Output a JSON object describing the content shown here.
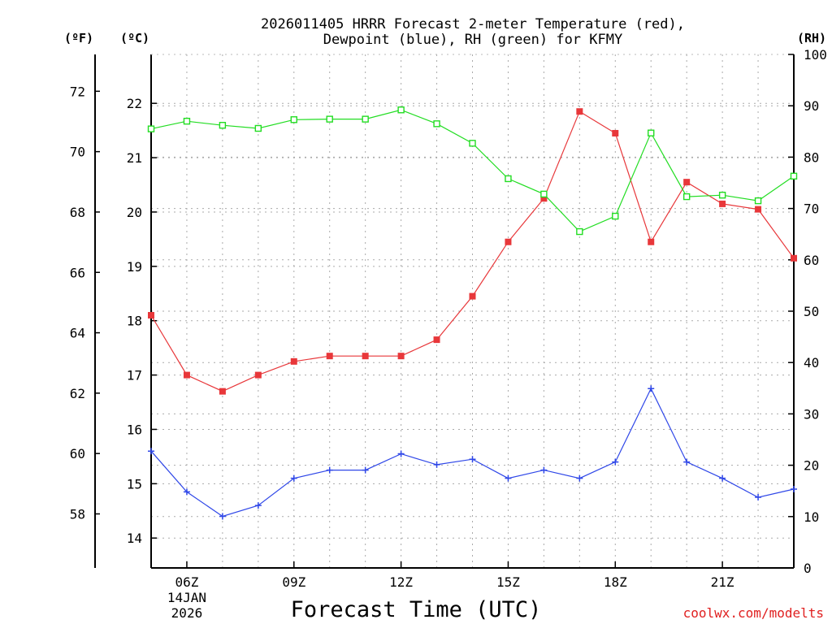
{
  "chart_data": {
    "type": "line",
    "title_lines": [
      "2026011405 HRRR Forecast 2-meter Temperature (red),",
      "Dewpoint (blue), RH (green) for KFMY"
    ],
    "xlabel": "Forecast Time (UTC)",
    "credit": "coolwx.com/modelts",
    "unit_labels": {
      "fahrenheit": "(ºF)",
      "celsius": "(ºC)",
      "rh": "(RH)"
    },
    "x_hours": [
      5,
      6,
      7,
      8,
      9,
      10,
      11,
      12,
      13,
      14,
      15,
      16,
      17,
      18,
      19,
      20,
      21,
      22,
      23
    ],
    "x_range": [
      5,
      23
    ],
    "x_ticks": [
      {
        "hour": 6,
        "label": "06Z",
        "sub": [
          "14JAN",
          "2026"
        ]
      },
      {
        "hour": 9,
        "label": "09Z"
      },
      {
        "hour": 12,
        "label": "12Z"
      },
      {
        "hour": 15,
        "label": "15Z"
      },
      {
        "hour": 18,
        "label": "18Z"
      },
      {
        "hour": 21,
        "label": "21Z"
      }
    ],
    "celsius_range": [
      13.45,
      22.9
    ],
    "celsius_ticks": [
      "14",
      "15",
      "16",
      "17",
      "18",
      "19",
      "20",
      "21",
      "22"
    ],
    "fahrenheit_ticks": [
      "58",
      "60",
      "62",
      "64",
      "66",
      "68",
      "70",
      "72"
    ],
    "rh_range": [
      0,
      100
    ],
    "rh_ticks": [
      "0",
      "10",
      "20",
      "30",
      "40",
      "50",
      "60",
      "70",
      "80",
      "90",
      "100"
    ],
    "series": [
      {
        "name": "Temperature",
        "axis": "celsius",
        "color": "#e8373a",
        "marker": "filled-square",
        "values": [
          18.1,
          17.0,
          16.7,
          17.0,
          17.25,
          17.35,
          17.35,
          17.35,
          17.65,
          18.45,
          19.45,
          20.25,
          21.85,
          21.45,
          19.45,
          20.55,
          20.15,
          20.05,
          19.15
        ]
      },
      {
        "name": "Dewpoint",
        "axis": "celsius",
        "color": "#2f47e8",
        "marker": "plus",
        "values": [
          15.6,
          14.85,
          14.4,
          14.6,
          15.1,
          15.25,
          15.25,
          15.55,
          15.35,
          15.45,
          15.1,
          15.25,
          15.1,
          15.4,
          16.75,
          15.4,
          15.1,
          14.75,
          14.9
        ]
      },
      {
        "name": "RH",
        "axis": "rh",
        "color": "#22dd22",
        "marker": "open-square",
        "values": [
          85.5,
          87,
          86.2,
          85.6,
          87.3,
          87.4,
          87.4,
          89.2,
          86.5,
          82.7,
          75.8,
          72.8,
          65.5,
          68.5,
          84.7,
          72.3,
          72.6,
          71.5,
          76.3
        ]
      }
    ]
  }
}
